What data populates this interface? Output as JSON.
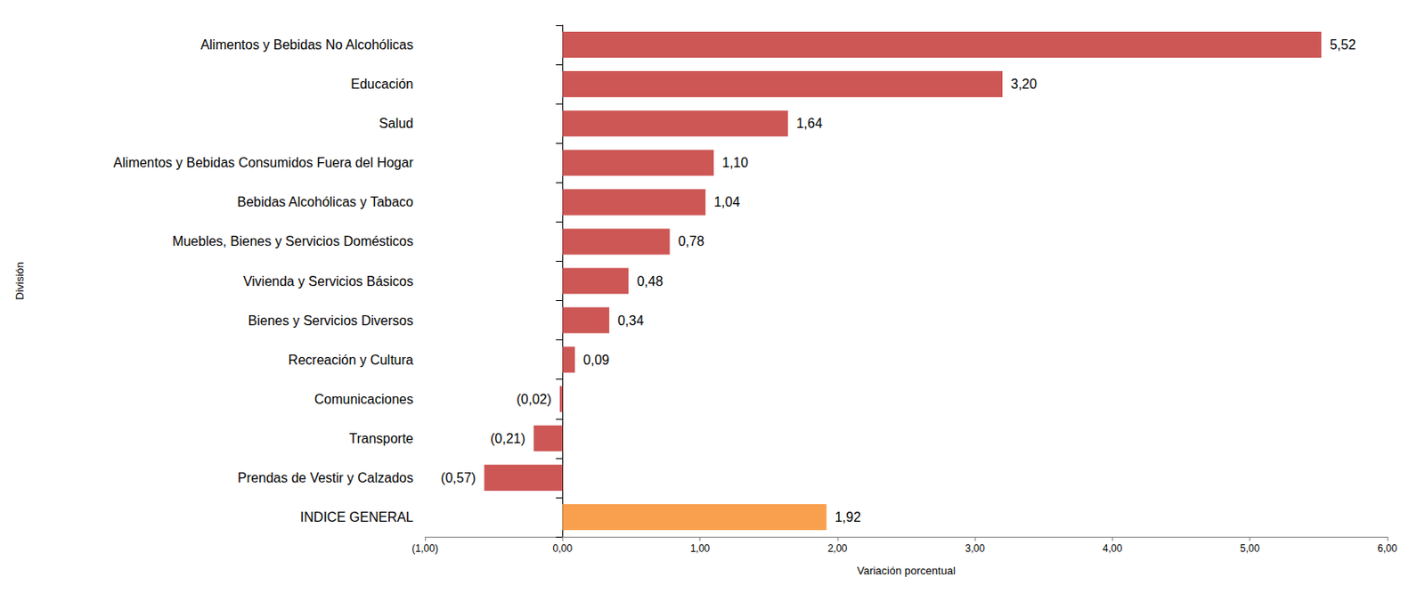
{
  "chart_data": {
    "type": "bar",
    "orientation": "horizontal",
    "categories": [
      "Alimentos y Bebidas No Alcohólicas",
      "Educación",
      "Salud",
      "Alimentos y Bebidas Consumidos Fuera del Hogar",
      "Bebidas Alcohólicas y Tabaco",
      "Muebles, Bienes y Servicios Domésticos",
      "Vivienda y Servicios Básicos",
      "Bienes y Servicios Diversos",
      "Recreación y Cultura",
      "Comunicaciones",
      "Transporte",
      "Prendas de Vestir y Calzados",
      "INDICE GENERAL"
    ],
    "values": [
      5.52,
      3.2,
      1.64,
      1.1,
      1.04,
      0.78,
      0.48,
      0.34,
      0.09,
      -0.02,
      -0.21,
      -0.57,
      1.92
    ],
    "value_labels": [
      "5,52",
      "3,20",
      "1,64",
      "1,10",
      "1,04",
      "0,78",
      "0,48",
      "0,34",
      "0,09",
      "(0,02)",
      "(0,21)",
      "(0,57)",
      "1,92"
    ],
    "colors": [
      "#cd5755",
      "#cd5755",
      "#cd5755",
      "#cd5755",
      "#cd5755",
      "#cd5755",
      "#cd5755",
      "#cd5755",
      "#cd5755",
      "#cd5755",
      "#cd5755",
      "#cd5755",
      "#f9a04e"
    ],
    "x_label": "Variación porcentual",
    "y_label": "División",
    "xlim": [
      -1,
      6
    ],
    "xticks": [
      {
        "value": -1,
        "label": "(1,00)"
      },
      {
        "value": 0,
        "label": "0,00"
      },
      {
        "value": 1,
        "label": "1,00"
      },
      {
        "value": 2,
        "label": "2,00"
      },
      {
        "value": 3,
        "label": "3,00"
      },
      {
        "value": 4,
        "label": "4,00"
      },
      {
        "value": 5,
        "label": "5,00"
      },
      {
        "value": 6,
        "label": "6,00"
      }
    ],
    "grid": false,
    "data_labels": true
  }
}
